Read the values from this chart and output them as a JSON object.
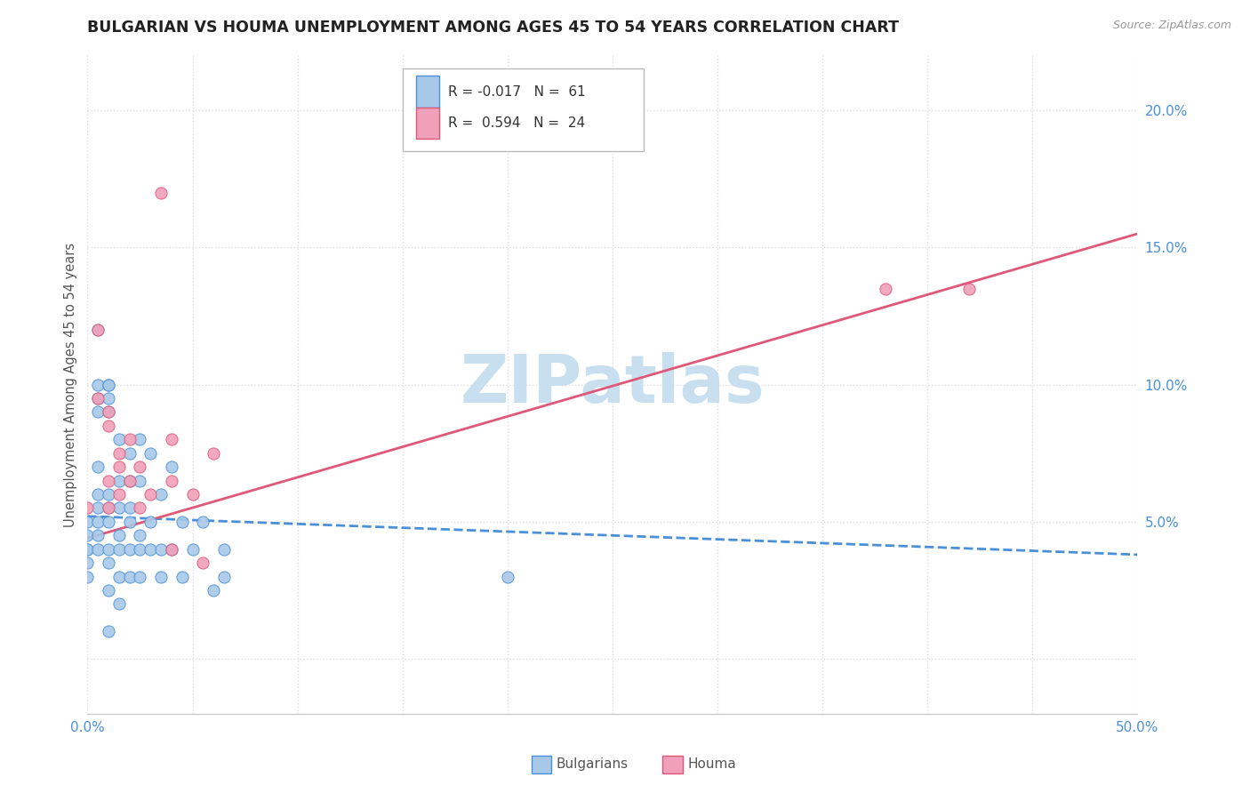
{
  "title": "BULGARIAN VS HOUMA UNEMPLOYMENT AMONG AGES 45 TO 54 YEARS CORRELATION CHART",
  "source": "Source: ZipAtlas.com",
  "ylabel": "Unemployment Among Ages 45 to 54 years",
  "xlim": [
    0,
    0.5
  ],
  "ylim": [
    -0.02,
    0.22
  ],
  "xticks": [
    0.0,
    0.05,
    0.1,
    0.15,
    0.2,
    0.25,
    0.3,
    0.35,
    0.4,
    0.45,
    0.5
  ],
  "xticklabels": [
    "0.0%",
    "",
    "",
    "",
    "",
    "",
    "",
    "",
    "",
    "",
    "50.0%"
  ],
  "yticks": [
    0.0,
    0.05,
    0.1,
    0.15,
    0.2
  ],
  "yticklabels": [
    "",
    "5.0%",
    "10.0%",
    "15.0%",
    "20.0%"
  ],
  "bulgarians_color": "#a8c8e8",
  "houma_color": "#f0a0b8",
  "bulgarians_line_color": "#4a90d9",
  "houma_line_color": "#e05878",
  "background_color": "#ffffff",
  "grid_color": "#dddddd",
  "watermark": "ZIPatlas",
  "watermark_color": "#c8dff0",
  "tick_color": "#4a90d9",
  "title_fontsize": 12.5,
  "axis_label_fontsize": 10.5,
  "tick_fontsize": 11,
  "bulgarians_x": [
    0.0,
    0.0,
    0.0,
    0.0,
    0.0,
    0.0,
    0.005,
    0.005,
    0.005,
    0.005,
    0.005,
    0.005,
    0.005,
    0.005,
    0.005,
    0.005,
    0.01,
    0.01,
    0.01,
    0.01,
    0.01,
    0.01,
    0.01,
    0.01,
    0.01,
    0.01,
    0.01,
    0.015,
    0.015,
    0.015,
    0.015,
    0.015,
    0.015,
    0.015,
    0.02,
    0.02,
    0.02,
    0.02,
    0.02,
    0.02,
    0.025,
    0.025,
    0.025,
    0.025,
    0.025,
    0.03,
    0.03,
    0.03,
    0.035,
    0.035,
    0.035,
    0.04,
    0.04,
    0.045,
    0.045,
    0.05,
    0.055,
    0.06,
    0.065,
    0.065,
    0.2
  ],
  "bulgarians_y": [
    0.05,
    0.045,
    0.04,
    0.04,
    0.035,
    0.03,
    0.12,
    0.1,
    0.095,
    0.09,
    0.07,
    0.06,
    0.055,
    0.05,
    0.045,
    0.04,
    0.1,
    0.1,
    0.095,
    0.09,
    0.06,
    0.055,
    0.05,
    0.04,
    0.035,
    0.025,
    0.01,
    0.08,
    0.065,
    0.055,
    0.045,
    0.04,
    0.03,
    0.02,
    0.075,
    0.065,
    0.055,
    0.05,
    0.04,
    0.03,
    0.08,
    0.065,
    0.045,
    0.04,
    0.03,
    0.075,
    0.05,
    0.04,
    0.06,
    0.04,
    0.03,
    0.07,
    0.04,
    0.05,
    0.03,
    0.04,
    0.05,
    0.025,
    0.04,
    0.03,
    0.03
  ],
  "houma_x": [
    0.0,
    0.005,
    0.005,
    0.01,
    0.01,
    0.01,
    0.01,
    0.015,
    0.015,
    0.015,
    0.02,
    0.02,
    0.025,
    0.025,
    0.03,
    0.035,
    0.04,
    0.04,
    0.04,
    0.05,
    0.055,
    0.06,
    0.38,
    0.42
  ],
  "houma_y": [
    0.055,
    0.12,
    0.095,
    0.09,
    0.085,
    0.065,
    0.055,
    0.075,
    0.07,
    0.06,
    0.08,
    0.065,
    0.07,
    0.055,
    0.06,
    0.17,
    0.08,
    0.065,
    0.04,
    0.06,
    0.035,
    0.075,
    0.135,
    0.135
  ],
  "bulgarians_line_y_start": 0.052,
  "bulgarians_line_y_end": 0.038,
  "houma_line_y_start": 0.044,
  "houma_line_y_end": 0.155,
  "legend_text_blue": "R = -0.017   N =  61",
  "legend_text_pink": "R =  0.594   N =  24",
  "bottom_legend_bulgarians": "Bulgarians",
  "bottom_legend_houma": "Houma"
}
